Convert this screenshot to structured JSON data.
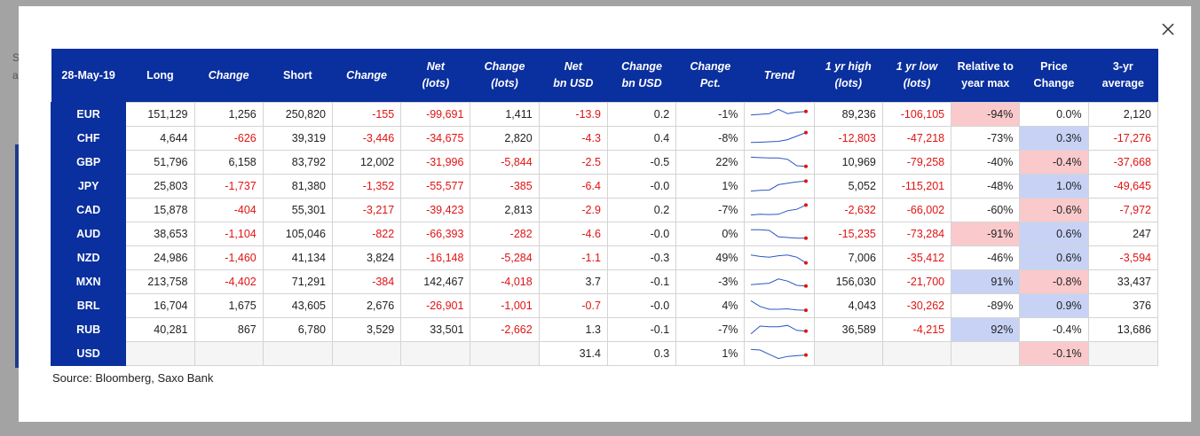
{
  "colors": {
    "header_bg": "#0a2f9e",
    "negative": "#e01313",
    "pink": "#f9c9cc",
    "blue": "#c7d2f5"
  },
  "close_icon": "close-icon",
  "headers": [
    {
      "lines": [
        "28-May-19"
      ],
      "italic": false
    },
    {
      "lines": [
        "Long"
      ],
      "italic": false
    },
    {
      "lines": [
        "Change"
      ],
      "italic": true
    },
    {
      "lines": [
        "Short"
      ],
      "italic": false
    },
    {
      "lines": [
        "Change"
      ],
      "italic": true
    },
    {
      "lines": [
        "Net",
        "(lots)"
      ],
      "italic": true
    },
    {
      "lines": [
        "Change",
        "(lots)"
      ],
      "italic": true
    },
    {
      "lines": [
        "Net",
        "bn USD"
      ],
      "italic": true
    },
    {
      "lines": [
        "Change",
        "bn USD"
      ],
      "italic": true
    },
    {
      "lines": [
        "Change",
        "Pct."
      ],
      "italic": true
    },
    {
      "lines": [
        "Trend"
      ],
      "italic": true
    },
    {
      "lines": [
        "1 yr high",
        "(lots)"
      ],
      "italic": true
    },
    {
      "lines": [
        "1 yr low",
        "(lots)"
      ],
      "italic": true
    },
    {
      "lines": [
        "Relative to",
        "year max"
      ],
      "italic": false
    },
    {
      "lines": [
        "Price",
        "Change"
      ],
      "italic": false
    },
    {
      "lines": [
        "3-yr",
        "average"
      ],
      "italic": false
    }
  ],
  "rows": [
    {
      "cur": "EUR",
      "long": "151,129",
      "chg1": "1,256",
      "short": "250,820",
      "chg2": "-155",
      "net": "-99,691",
      "chglots": "1,411",
      "netbn": "-13.9",
      "chgbn": "0.2",
      "pct": "-1%",
      "trend": [
        0.55,
        0.5,
        0.45,
        0.15,
        0.45,
        0.35,
        0.3
      ],
      "high": "89,236",
      "low": "-106,105",
      "rel": "-94%",
      "rel_bg": "pink",
      "price": "0.0%",
      "price_bg": "",
      "avg": "2,120"
    },
    {
      "cur": "CHF",
      "long": "4,644",
      "chg1": "-626",
      "short": "39,319",
      "chg2": "-3,446",
      "net": "-34,675",
      "chglots": "2,820",
      "netbn": "-4.3",
      "chgbn": "0.4",
      "pct": "-8%",
      "trend": [
        0.8,
        0.78,
        0.75,
        0.72,
        0.6,
        0.35,
        0.1
      ],
      "high": "-12,803",
      "low": "-47,218",
      "rel": "-73%",
      "rel_bg": "",
      "price": "0.3%",
      "price_bg": "blue",
      "avg": "-17,276"
    },
    {
      "cur": "GBP",
      "long": "51,796",
      "chg1": "6,158",
      "short": "83,792",
      "chg2": "12,002",
      "net": "-31,996",
      "chglots": "-5,844",
      "netbn": "-2.5",
      "chgbn": "-0.5",
      "pct": "22%",
      "trend": [
        0.15,
        0.18,
        0.2,
        0.2,
        0.3,
        0.75,
        0.8
      ],
      "high": "10,969",
      "low": "-79,258",
      "rel": "-40%",
      "rel_bg": "",
      "price": "-0.4%",
      "price_bg": "pink",
      "avg": "-37,668"
    },
    {
      "cur": "JPY",
      "long": "25,803",
      "chg1": "-1,737",
      "short": "81,380",
      "chg2": "-1,352",
      "net": "-55,577",
      "chglots": "-385",
      "netbn": "-6.4",
      "chgbn": "-0.0",
      "pct": "1%",
      "trend": [
        0.85,
        0.8,
        0.78,
        0.4,
        0.3,
        0.2,
        0.15
      ],
      "high": "5,052",
      "low": "-115,201",
      "rel": "-48%",
      "rel_bg": "",
      "price": "1.0%",
      "price_bg": "blue",
      "avg": "-49,645"
    },
    {
      "cur": "CAD",
      "long": "15,878",
      "chg1": "-404",
      "short": "55,301",
      "chg2": "-3,217",
      "net": "-39,423",
      "chglots": "2,813",
      "netbn": "-2.9",
      "chgbn": "0.2",
      "pct": "-7%",
      "trend": [
        0.85,
        0.8,
        0.82,
        0.8,
        0.55,
        0.45,
        0.15
      ],
      "high": "-2,632",
      "low": "-66,002",
      "rel": "-60%",
      "rel_bg": "",
      "price": "-0.6%",
      "price_bg": "pink",
      "avg": "-7,972"
    },
    {
      "cur": "AUD",
      "long": "38,653",
      "chg1": "-1,104",
      "short": "105,046",
      "chg2": "-822",
      "net": "-66,393",
      "chglots": "-282",
      "netbn": "-4.6",
      "chgbn": "-0.0",
      "pct": "0%",
      "trend": [
        0.2,
        0.2,
        0.25,
        0.7,
        0.75,
        0.8,
        0.8
      ],
      "high": "-15,235",
      "low": "-73,284",
      "rel": "-91%",
      "rel_bg": "pink",
      "price": "0.6%",
      "price_bg": "blue",
      "avg": "247"
    },
    {
      "cur": "NZD",
      "long": "24,986",
      "chg1": "-1,460",
      "short": "41,134",
      "chg2": "3,824",
      "net": "-16,148",
      "chglots": "-5,284",
      "netbn": "-1.1",
      "chgbn": "-0.3",
      "pct": "49%",
      "trend": [
        0.3,
        0.4,
        0.45,
        0.35,
        0.3,
        0.45,
        0.85
      ],
      "high": "7,006",
      "low": "-35,412",
      "rel": "-46%",
      "rel_bg": "",
      "price": "0.6%",
      "price_bg": "blue",
      "avg": "-3,594"
    },
    {
      "cur": "MXN",
      "long": "213,758",
      "chg1": "-4,402",
      "short": "71,291",
      "chg2": "-384",
      "net": "142,467",
      "chglots": "-4,018",
      "netbn": "3.7",
      "chgbn": "-0.1",
      "pct": "-3%",
      "trend": [
        0.7,
        0.65,
        0.6,
        0.3,
        0.45,
        0.75,
        0.8
      ],
      "high": "156,030",
      "low": "-21,700",
      "rel": "91%",
      "rel_bg": "blue",
      "price": "-0.8%",
      "price_bg": "pink",
      "avg": "33,437"
    },
    {
      "cur": "BRL",
      "long": "16,704",
      "chg1": "1,675",
      "short": "43,605",
      "chg2": "2,676",
      "net": "-26,901",
      "chglots": "-1,001",
      "netbn": "-0.7",
      "chgbn": "-0.0",
      "pct": "4%",
      "trend": [
        0.15,
        0.55,
        0.75,
        0.75,
        0.72,
        0.8,
        0.82
      ],
      "high": "4,043",
      "low": "-30,262",
      "rel": "-89%",
      "rel_bg": "",
      "price": "0.9%",
      "price_bg": "blue",
      "avg": "376"
    },
    {
      "cur": "RUB",
      "long": "40,281",
      "chg1": "867",
      "short": "6,780",
      "chg2": "3,529",
      "net": "33,501",
      "chglots": "-2,662",
      "netbn": "1.3",
      "chgbn": "-0.1",
      "pct": "-7%",
      "trend": [
        0.8,
        0.25,
        0.3,
        0.3,
        0.2,
        0.55,
        0.6
      ],
      "high": "36,589",
      "low": "-4,215",
      "rel": "92%",
      "rel_bg": "blue",
      "price": "-0.4%",
      "price_bg": "",
      "avg": "13,686"
    },
    {
      "cur": "USD",
      "long": "",
      "chg1": "",
      "short": "",
      "chg2": "",
      "net": "",
      "chglots": "",
      "netbn": "31.4",
      "chgbn": "0.3",
      "pct": "1%",
      "trend": [
        0.2,
        0.25,
        0.55,
        0.85,
        0.7,
        0.65,
        0.6
      ],
      "high": "",
      "low": "",
      "rel": "",
      "rel_bg": "",
      "price": "-0.1%",
      "price_bg": "pink",
      "avg": ""
    }
  ],
  "source_text": "Source: Bloomberg, Saxo Bank",
  "bg_fragment": "S a"
}
